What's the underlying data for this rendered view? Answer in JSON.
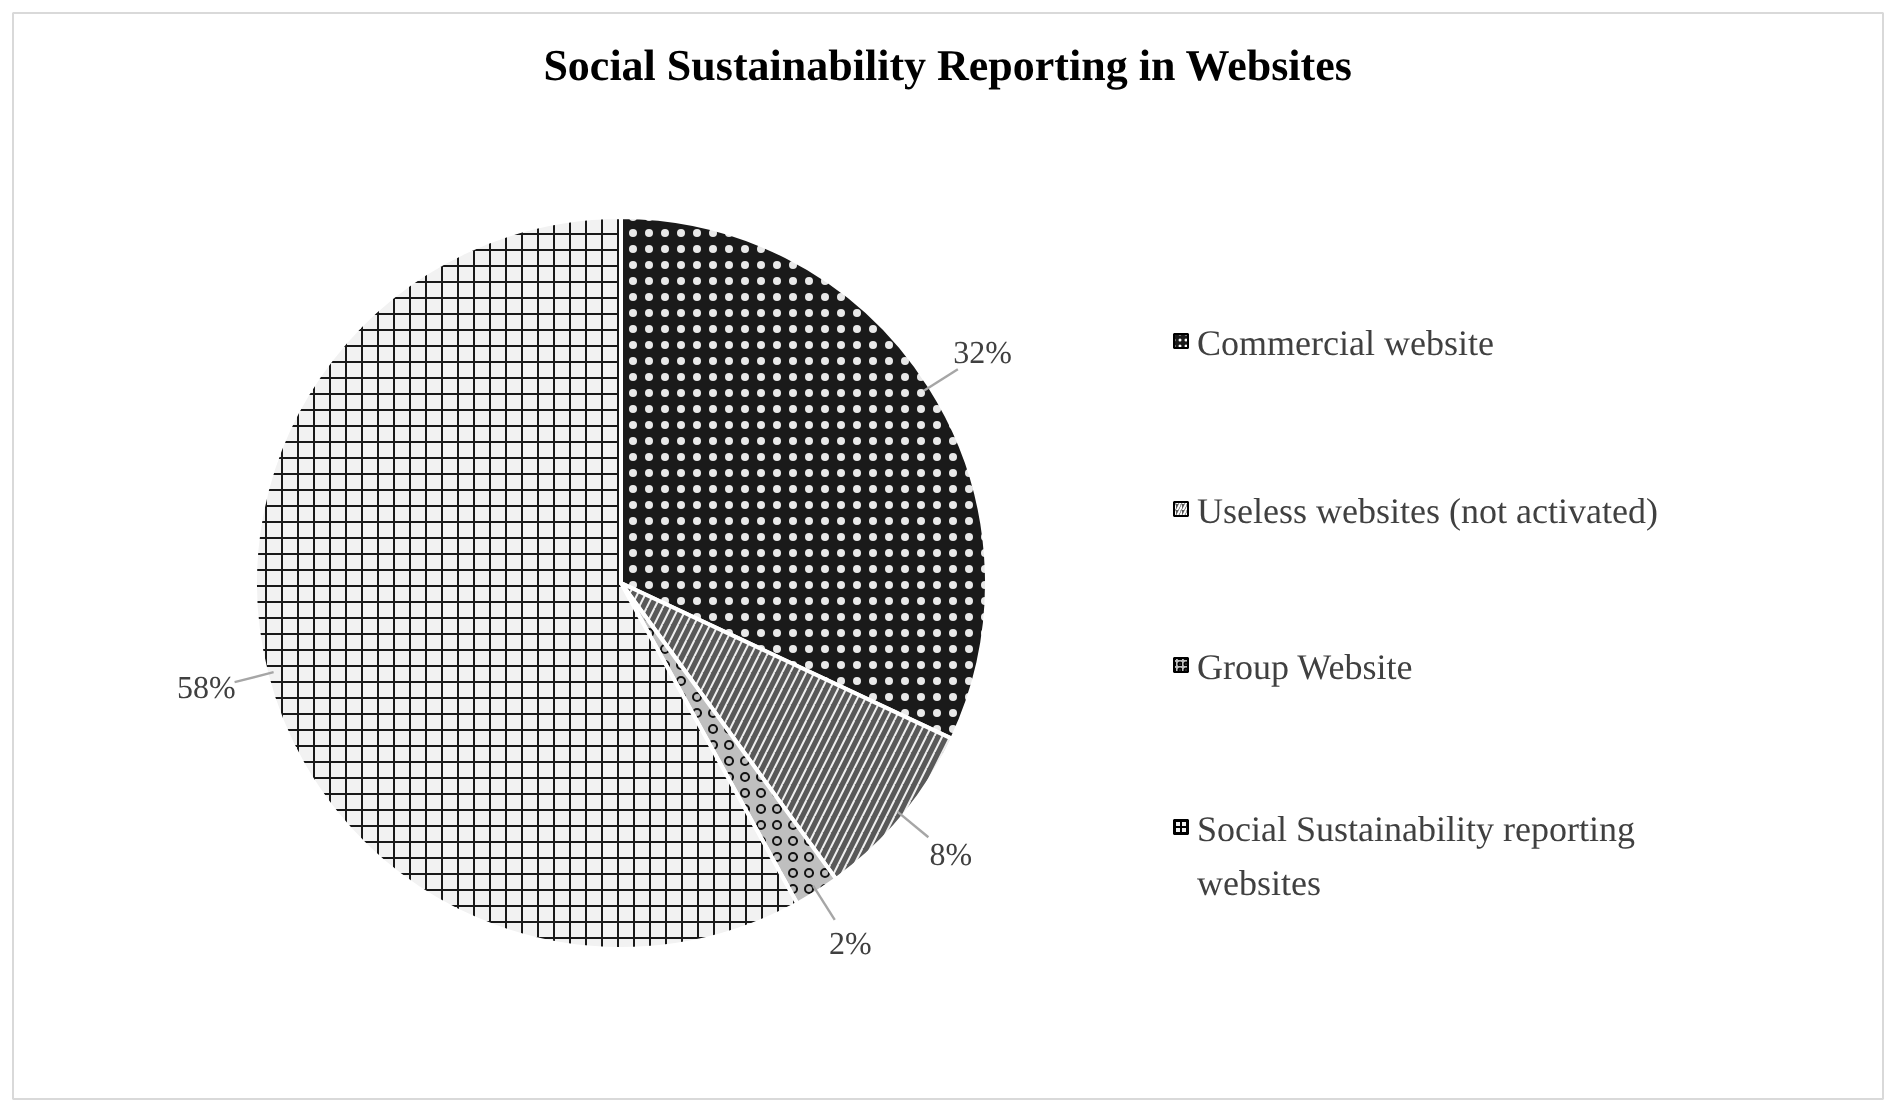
{
  "chart_data": {
    "type": "pie",
    "title": "Social Sustainability Reporting in Websites",
    "categories": [
      "Commercial website",
      "Useless websites (not activated)",
      "Group Website",
      "Social Sustainability reporting websites"
    ],
    "values": [
      32,
      8,
      2,
      58
    ],
    "colors": [
      "#1a1a1a",
      "#595959",
      "#bfbfbf",
      "#f2f2f2"
    ],
    "value_labels": [
      "32%",
      "8%",
      "2%",
      "58%"
    ],
    "legend": "right"
  }
}
